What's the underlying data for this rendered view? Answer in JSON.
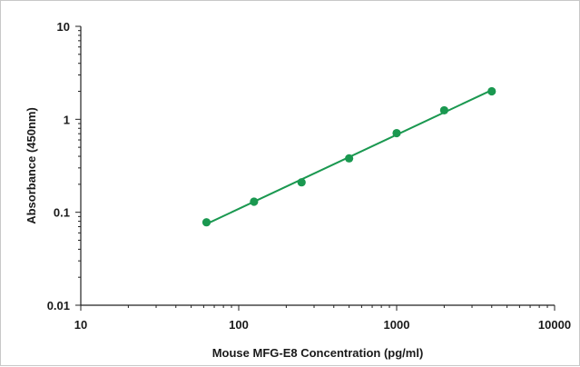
{
  "chart_data": {
    "type": "scatter",
    "title": "",
    "xlabel": "Mouse MFG-E8  Concentration (pg/ml)",
    "ylabel": "Absorbance (450nm)",
    "x_scale": "log",
    "y_scale": "log",
    "xlim": [
      10,
      10000
    ],
    "ylim": [
      0.01,
      10
    ],
    "x_ticks": [
      "10",
      "100",
      "1000",
      "10000"
    ],
    "y_ticks": [
      "10",
      "1",
      "0.1",
      "0.01"
    ],
    "grid": false,
    "legend": "none",
    "series": [
      {
        "x": [
          62.5,
          125,
          250,
          500,
          1000,
          2000,
          4000
        ],
        "y": [
          0.078,
          0.13,
          0.21,
          0.38,
          0.71,
          1.25,
          2.0
        ],
        "color": "#1a9850",
        "marker": "circle",
        "trendline": true
      }
    ]
  }
}
